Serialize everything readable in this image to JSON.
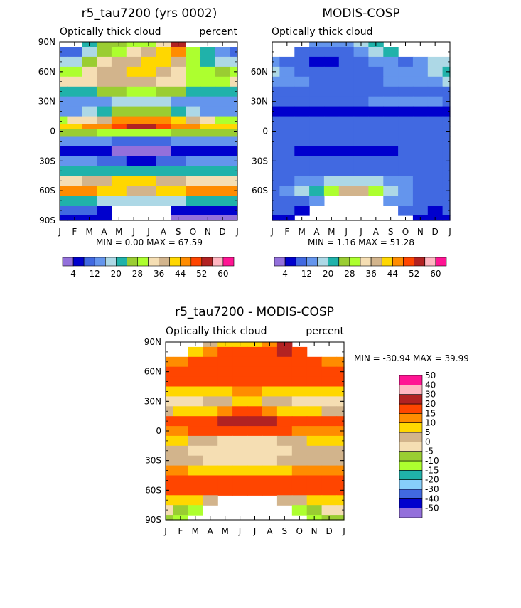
{
  "panels": [
    {
      "title": "r5_tau7200 (yrs 0002)",
      "subtitle_left": "Optically thick cloud",
      "subtitle_right": "percent",
      "min_max": "MIN =    0.00 MAX =   67.59"
    },
    {
      "title": "MODIS-COSP",
      "subtitle_left": "Optically thick cloud",
      "subtitle_right": "",
      "min_max": "MIN =    1.16 MAX =   51.28"
    },
    {
      "title": "r5_tau7200 - MODIS-COSP",
      "subtitle_left": "Optically thick cloud",
      "subtitle_right": "percent",
      "min_max": "MIN = -30.94 MAX =  39.99"
    }
  ],
  "chart_data": [
    {
      "type": "heatmap",
      "title": "r5_tau7200 (yrs 0002)",
      "x_ticks": [
        "J",
        "F",
        "M",
        "A",
        "M",
        "J",
        "J",
        "A",
        "S",
        "O",
        "N",
        "D",
        "J"
      ],
      "y_ticks": [
        "90N",
        "60N",
        "30N",
        "0",
        "30S",
        "60S",
        "90S"
      ],
      "ylim": [
        -90,
        90
      ],
      "rows": [
        {
          "lat": 90,
          "v": [
            -1,
            -1,
            22,
            24,
            26,
            28,
            30,
            32,
            55,
            -1,
            -1,
            -1,
            -1
          ],
          "x_range": [
            0.6,
            8.5
          ]
        },
        {
          "lat": 80,
          "v": [
            8,
            10,
            16,
            26,
            30,
            34,
            38,
            42,
            46,
            30,
            20,
            12,
            10
          ]
        },
        {
          "lat": 70,
          "v": [
            16,
            18,
            24,
            32,
            36,
            38,
            40,
            40,
            38,
            30,
            22,
            18,
            16
          ]
        },
        {
          "lat": 60,
          "v": [
            28,
            30,
            32,
            36,
            38,
            40,
            40,
            38,
            34,
            30,
            28,
            26,
            28
          ]
        },
        {
          "lat": 50,
          "v": [
            32,
            34,
            34,
            36,
            36,
            36,
            36,
            34,
            32,
            30,
            30,
            30,
            32
          ]
        },
        {
          "lat": 40,
          "v": [
            22,
            22,
            22,
            24,
            26,
            28,
            28,
            26,
            24,
            22,
            22,
            22,
            22
          ]
        },
        {
          "lat": 30,
          "v": [
            12,
            12,
            12,
            14,
            16,
            18,
            18,
            16,
            14,
            12,
            12,
            12,
            12
          ]
        },
        {
          "lat": 20,
          "v": [
            14,
            14,
            16,
            20,
            24,
            26,
            26,
            24,
            20,
            16,
            14,
            14,
            14
          ]
        },
        {
          "lat": 10,
          "v": [
            30,
            32,
            34,
            38,
            44,
            46,
            46,
            44,
            40,
            36,
            32,
            30,
            30
          ]
        },
        {
          "lat": 5,
          "v": [
            40,
            42,
            44,
            46,
            50,
            52,
            52,
            50,
            46,
            44,
            42,
            40,
            40
          ]
        },
        {
          "lat": 0,
          "v": [
            24,
            24,
            26,
            28,
            30,
            30,
            30,
            28,
            26,
            24,
            24,
            24,
            24
          ]
        },
        {
          "lat": -10,
          "v": [
            12,
            12,
            12,
            12,
            10,
            8,
            8,
            10,
            12,
            12,
            12,
            12,
            12
          ]
        },
        {
          "lat": -20,
          "v": [
            6,
            6,
            6,
            4,
            2,
            2,
            2,
            2,
            4,
            6,
            6,
            6,
            6
          ]
        },
        {
          "lat": -30,
          "v": [
            12,
            12,
            12,
            10,
            8,
            6,
            6,
            8,
            10,
            12,
            12,
            12,
            12
          ]
        },
        {
          "lat": -40,
          "v": [
            20,
            20,
            20,
            22,
            22,
            22,
            22,
            22,
            22,
            20,
            20,
            20,
            20
          ]
        },
        {
          "lat": -50,
          "v": [
            34,
            34,
            36,
            38,
            40,
            40,
            40,
            38,
            36,
            34,
            34,
            34,
            34
          ]
        },
        {
          "lat": -60,
          "v": [
            44,
            44,
            44,
            42,
            40,
            38,
            38,
            40,
            42,
            44,
            44,
            44,
            44
          ]
        },
        {
          "lat": -70,
          "v": [
            22,
            22,
            20,
            18,
            16,
            16,
            16,
            16,
            18,
            20,
            22,
            22,
            22
          ]
        },
        {
          "lat": -80,
          "v": [
            8,
            8,
            8,
            6,
            -1,
            -1,
            -1,
            -1,
            6,
            4,
            4,
            4,
            4
          ]
        },
        {
          "lat": -90,
          "v": [
            4,
            4,
            4,
            4,
            -1,
            -1,
            -1,
            -1,
            2,
            2,
            2,
            2,
            2
          ]
        }
      ],
      "min": 0.0,
      "max": 67.59
    },
    {
      "type": "heatmap",
      "title": "MODIS-COSP",
      "x_ticks": [
        "J",
        "F",
        "M",
        "A",
        "M",
        "J",
        "J",
        "A",
        "S",
        "O",
        "N",
        "D",
        "J"
      ],
      "y_ticks": [
        "60N",
        "30N",
        "0",
        "30S",
        "60S"
      ],
      "ylim": [
        -90,
        90
      ],
      "rows": [
        {
          "lat": 90,
          "v": [
            -1,
            -1,
            -1,
            12,
            12,
            12,
            16,
            22,
            -1,
            -1,
            -1,
            -1,
            -1
          ]
        },
        {
          "lat": 80,
          "v": [
            -1,
            -1,
            8,
            8,
            10,
            10,
            12,
            16,
            20,
            -1,
            -1,
            -1,
            -1
          ]
        },
        {
          "lat": 70,
          "v": [
            14,
            10,
            8,
            6,
            6,
            8,
            10,
            12,
            12,
            10,
            12,
            16,
            18
          ]
        },
        {
          "lat": 60,
          "v": [
            18,
            12,
            10,
            8,
            8,
            10,
            10,
            10,
            12,
            12,
            14,
            18,
            22
          ]
        },
        {
          "lat": 50,
          "v": [
            14,
            12,
            12,
            10,
            10,
            10,
            10,
            10,
            12,
            12,
            12,
            14,
            16
          ]
        },
        {
          "lat": 40,
          "v": [
            10,
            10,
            10,
            10,
            10,
            10,
            10,
            10,
            10,
            10,
            10,
            10,
            10
          ]
        },
        {
          "lat": 30,
          "v": [
            10,
            10,
            10,
            10,
            10,
            10,
            10,
            12,
            12,
            12,
            12,
            12,
            10
          ]
        },
        {
          "lat": 20,
          "v": [
            4,
            4,
            4,
            4,
            4,
            6,
            6,
            6,
            6,
            6,
            6,
            6,
            6
          ]
        },
        {
          "lat": 10,
          "v": [
            8,
            8,
            8,
            8,
            8,
            8,
            8,
            8,
            8,
            8,
            8,
            8,
            8
          ]
        },
        {
          "lat": 0,
          "v": [
            8,
            8,
            8,
            8,
            8,
            8,
            8,
            8,
            8,
            8,
            8,
            8,
            8
          ]
        },
        {
          "lat": -10,
          "v": [
            8,
            8,
            8,
            8,
            8,
            8,
            8,
            8,
            8,
            8,
            8,
            8,
            8
          ]
        },
        {
          "lat": -20,
          "v": [
            8,
            8,
            6,
            4,
            4,
            4,
            4,
            4,
            6,
            8,
            8,
            8,
            8
          ]
        },
        {
          "lat": -30,
          "v": [
            8,
            8,
            8,
            8,
            8,
            8,
            8,
            8,
            8,
            8,
            8,
            8,
            8
          ]
        },
        {
          "lat": -40,
          "v": [
            10,
            10,
            10,
            10,
            10,
            10,
            10,
            10,
            10,
            10,
            10,
            10,
            10
          ]
        },
        {
          "lat": -50,
          "v": [
            10,
            10,
            12,
            14,
            16,
            18,
            18,
            16,
            14,
            12,
            10,
            10,
            10
          ]
        },
        {
          "lat": -60,
          "v": [
            10,
            12,
            16,
            22,
            30,
            36,
            36,
            28,
            18,
            12,
            10,
            10,
            10
          ]
        },
        {
          "lat": -70,
          "v": [
            10,
            10,
            10,
            12,
            -1,
            -1,
            -1,
            -1,
            14,
            12,
            10,
            10,
            10
          ]
        },
        {
          "lat": -80,
          "v": [
            8,
            8,
            6,
            -1,
            -1,
            -1,
            -1,
            -1,
            -1,
            8,
            8,
            6,
            8
          ]
        },
        {
          "lat": -90,
          "v": [
            6,
            6,
            -1,
            -1,
            -1,
            -1,
            -1,
            -1,
            -1,
            -1,
            6,
            6,
            6
          ]
        }
      ],
      "min": 1.16,
      "max": 51.28
    },
    {
      "type": "heatmap",
      "title": "r5_tau7200 - MODIS-COSP",
      "x_ticks": [
        "J",
        "F",
        "M",
        "A",
        "M",
        "J",
        "J",
        "A",
        "S",
        "O",
        "N",
        "D",
        "J"
      ],
      "y_ticks": [
        "90N",
        "60N",
        "30N",
        "0",
        "30S",
        "60S",
        "90S"
      ],
      "ylim": [
        -90,
        90
      ],
      "rows": [
        {
          "lat": 90,
          "v": [
            -1,
            -1,
            -1,
            8,
            10,
            12,
            14,
            16,
            32,
            -1,
            -1,
            -1,
            -1
          ]
        },
        {
          "lat": 80,
          "v": [
            -1,
            -1,
            12,
            18,
            22,
            24,
            26,
            28,
            30,
            22,
            -1,
            -1,
            -1
          ]
        },
        {
          "lat": 70,
          "v": [
            16,
            18,
            22,
            26,
            28,
            28,
            28,
            28,
            26,
            22,
            20,
            18,
            16
          ]
        },
        {
          "lat": 60,
          "v": [
            22,
            24,
            24,
            26,
            26,
            26,
            26,
            26,
            24,
            24,
            22,
            22,
            22
          ]
        },
        {
          "lat": 50,
          "v": [
            22,
            22,
            22,
            24,
            24,
            24,
            24,
            24,
            22,
            22,
            22,
            22,
            22
          ]
        },
        {
          "lat": 40,
          "v": [
            10,
            10,
            10,
            12,
            14,
            16,
            16,
            14,
            12,
            10,
            10,
            10,
            10
          ]
        },
        {
          "lat": 30,
          "v": [
            4,
            4,
            4,
            6,
            8,
            10,
            10,
            8,
            6,
            4,
            4,
            4,
            4
          ]
        },
        {
          "lat": 20,
          "v": [
            8,
            10,
            12,
            14,
            18,
            20,
            20,
            18,
            14,
            12,
            10,
            8,
            8
          ]
        },
        {
          "lat": 10,
          "v": [
            22,
            24,
            26,
            28,
            32,
            34,
            34,
            32,
            28,
            26,
            24,
            22,
            22
          ]
        },
        {
          "lat": 0,
          "v": [
            18,
            18,
            20,
            22,
            24,
            24,
            24,
            22,
            20,
            18,
            18,
            18,
            18
          ]
        },
        {
          "lat": -10,
          "v": [
            10,
            10,
            8,
            6,
            4,
            2,
            2,
            4,
            6,
            8,
            10,
            10,
            10
          ]
        },
        {
          "lat": -20,
          "v": [
            6,
            6,
            4,
            2,
            2,
            2,
            2,
            2,
            4,
            6,
            6,
            6,
            6
          ]
        },
        {
          "lat": -30,
          "v": [
            8,
            8,
            6,
            4,
            4,
            4,
            4,
            4,
            6,
            8,
            8,
            8,
            8
          ]
        },
        {
          "lat": -40,
          "v": [
            16,
            16,
            14,
            14,
            14,
            14,
            14,
            14,
            14,
            16,
            16,
            16,
            16
          ]
        },
        {
          "lat": -50,
          "v": [
            24,
            24,
            24,
            26,
            24,
            24,
            24,
            24,
            26,
            24,
            24,
            24,
            24
          ]
        },
        {
          "lat": -60,
          "v": [
            28,
            28,
            26,
            24,
            22,
            20,
            20,
            22,
            24,
            26,
            28,
            28,
            28
          ]
        },
        {
          "lat": -70,
          "v": [
            14,
            12,
            10,
            8,
            -1,
            -1,
            -1,
            -1,
            6,
            8,
            10,
            12,
            14
          ]
        },
        {
          "lat": -80,
          "v": [
            0,
            -4,
            -6,
            -1,
            -1,
            -1,
            -1,
            -1,
            -1,
            -10,
            -4,
            0,
            2
          ]
        },
        {
          "lat": -90,
          "v": [
            -4,
            -6,
            -1,
            -1,
            -1,
            -1,
            -1,
            -1,
            -1,
            -1,
            -6,
            -4,
            -4
          ]
        }
      ],
      "min": -30.94,
      "max": 39.99
    }
  ],
  "colorbars": {
    "abs": {
      "colors": [
        "#9370db",
        "#0000cd",
        "#4169e1",
        "#6495ed",
        "#add8e6",
        "#20b2aa",
        "#9acd32",
        "#adff2f",
        "#f5deb3",
        "#d2b48c",
        "#ffd700",
        "#ff8c00",
        "#ff4500",
        "#b22222",
        "#ffb6c1",
        "#ff1493"
      ],
      "labels": [
        "4",
        "12",
        "20",
        "28",
        "36",
        "44",
        "52",
        "60"
      ],
      "levels": [
        2,
        4,
        8,
        12,
        16,
        20,
        24,
        28,
        32,
        36,
        40,
        44,
        48,
        52,
        56,
        60
      ]
    },
    "diff": {
      "colors": [
        "#9370db",
        "#0000cd",
        "#4169e1",
        "#87cefa",
        "#20b2aa",
        "#adff2f",
        "#9acd32",
        "#f5deb3",
        "#d2b48c",
        "#ffd700",
        "#ff8c00",
        "#ff4500",
        "#b22222",
        "#ffb6c1",
        "#ff1493"
      ],
      "labels": [
        "-50",
        "-40",
        "-30",
        "-20",
        "-15",
        "-10",
        "-5",
        "0",
        "5",
        "10",
        "15",
        "20",
        "30",
        "40",
        "50"
      ],
      "levels": [
        -50,
        -40,
        -30,
        -20,
        -15,
        -10,
        -5,
        0,
        5,
        10,
        15,
        20,
        30,
        40,
        50
      ]
    }
  }
}
